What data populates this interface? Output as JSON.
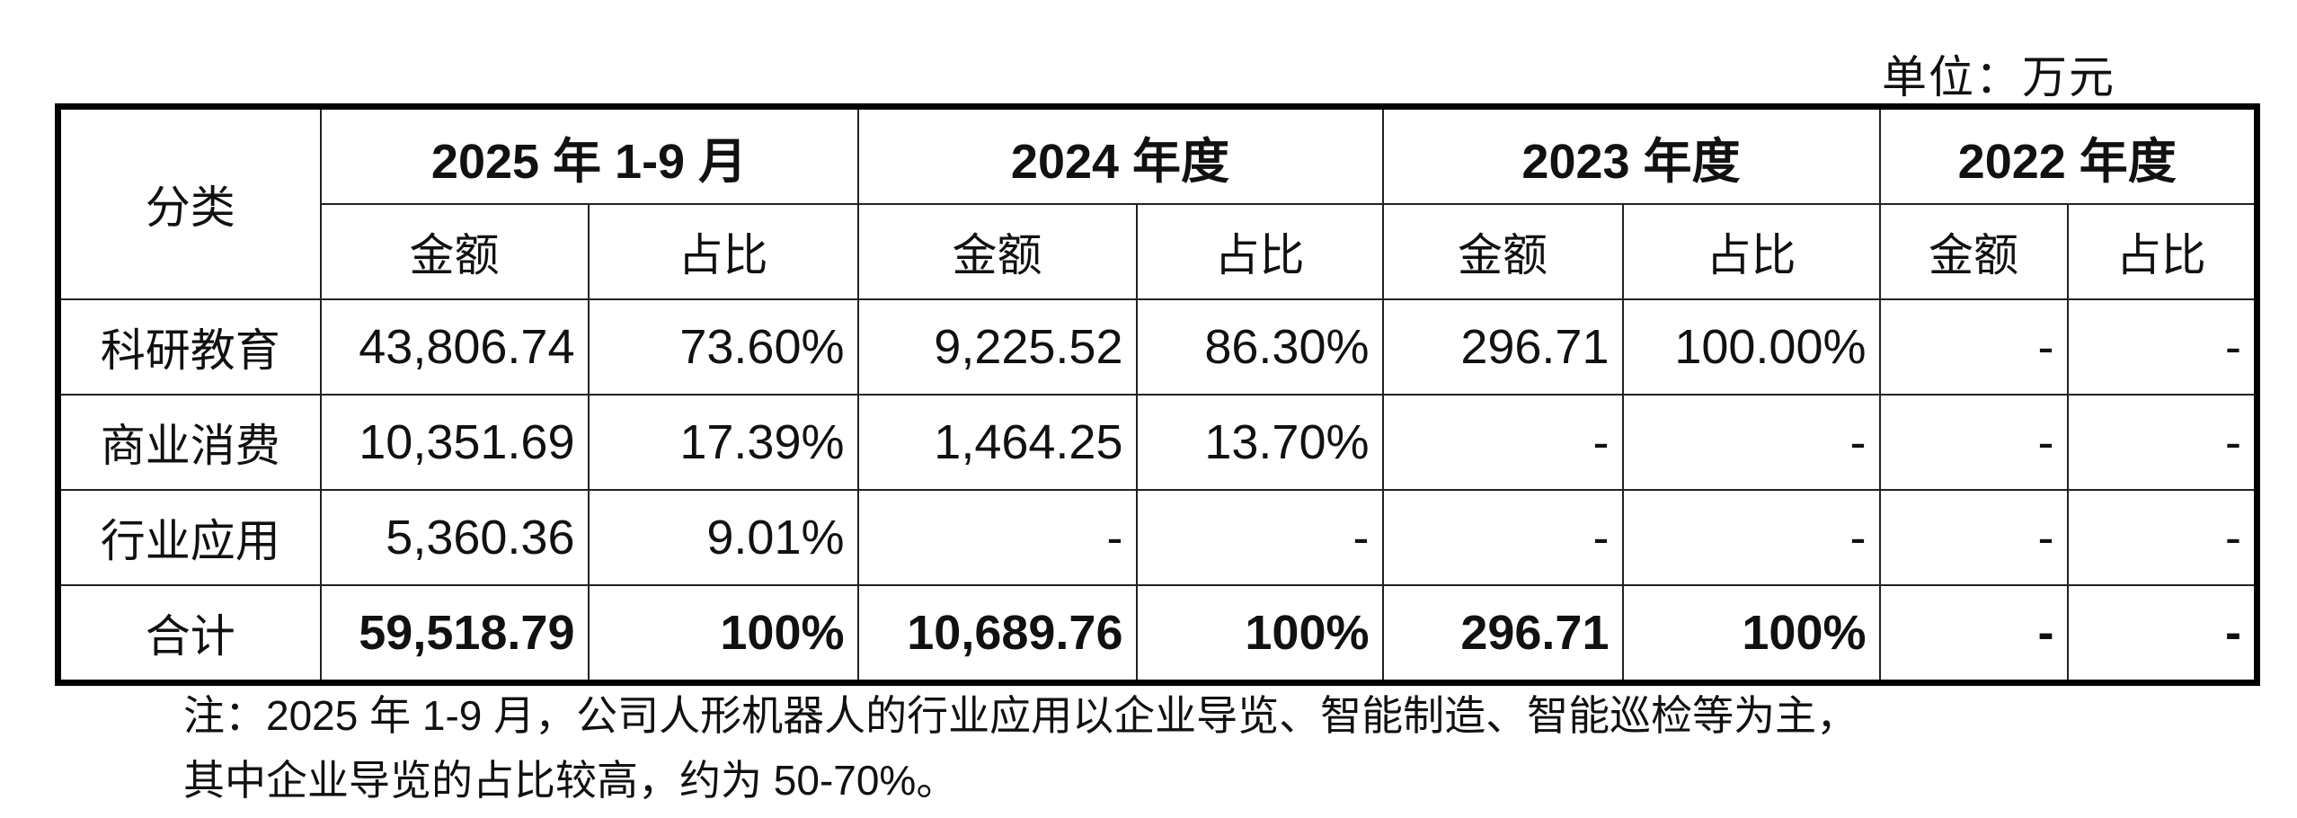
{
  "unit_label": "单位：万元",
  "header": {
    "category": "分类",
    "periods": [
      "2025 年 1-9 月",
      "2024 年度",
      "2023 年度",
      "2022 年度"
    ],
    "amount": "金额",
    "ratio": "占比"
  },
  "rows": [
    {
      "category": "科研教育",
      "values": [
        "43,806.74",
        "73.60%",
        "9,225.52",
        "86.30%",
        "296.71",
        "100.00%",
        "-",
        "-"
      ]
    },
    {
      "category": "商业消费",
      "values": [
        "10,351.69",
        "17.39%",
        "1,464.25",
        "13.70%",
        "-",
        "-",
        "-",
        "-"
      ]
    },
    {
      "category": "行业应用",
      "values": [
        "5,360.36",
        "9.01%",
        "-",
        "-",
        "-",
        "-",
        "-",
        "-"
      ]
    }
  ],
  "total": {
    "category": "合计",
    "values": [
      "59,518.79",
      "100%",
      "10,689.76",
      "100%",
      "296.71",
      "100%",
      "-",
      "-"
    ]
  },
  "note": [
    "注：2025 年 1-9 月，公司人形机器人的行业应用以企业导览、智能制造、智能巡检等为主，",
    "其中企业导览的占比较高，约为 50-70%。"
  ]
}
